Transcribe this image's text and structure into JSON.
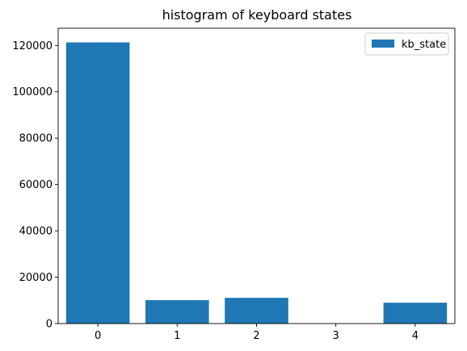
{
  "chart_data": {
    "type": "bar",
    "title": "histogram of keyboard states",
    "xlabel": "",
    "ylabel": "",
    "categories": [
      "0",
      "1",
      "2",
      "3",
      "4"
    ],
    "series": [
      {
        "name": "kb_state",
        "color": "#1f77b4",
        "values": [
          121300,
          10100,
          11100,
          0,
          9000
        ]
      }
    ],
    "yticks": [
      0,
      20000,
      40000,
      60000,
      80000,
      100000,
      120000
    ],
    "ytick_labels": [
      "0",
      "20000",
      "40000",
      "60000",
      "80000",
      "100000",
      "120000"
    ],
    "ylim": [
      0,
      127400
    ],
    "xlim": [
      -0.5,
      4.5
    ],
    "grid": false,
    "legend_position": "top-right"
  }
}
